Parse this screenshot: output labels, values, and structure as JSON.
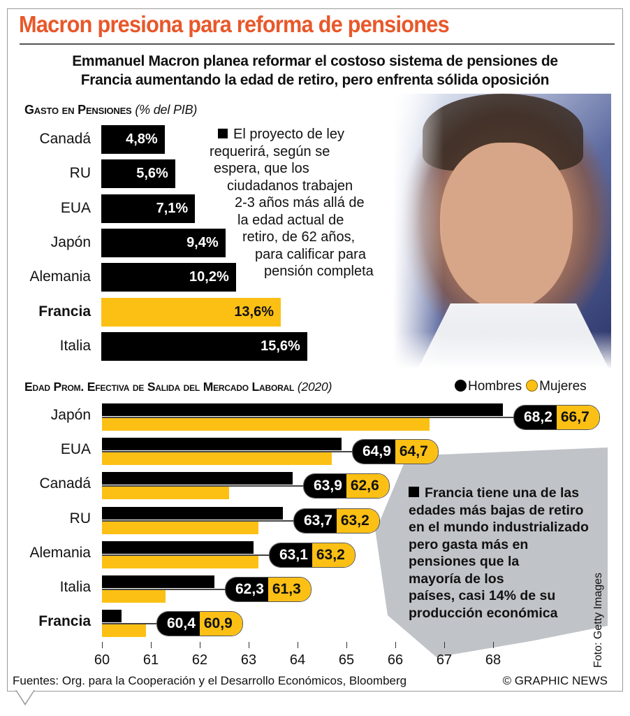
{
  "title": "Macron presiona para reforma de pensiones",
  "subtitle_lines": [
    "Emmanuel Macron planea reformar el costoso sistema de pensiones de",
    "Francia aumentando la edad de retiro, pero enfrenta sólida oposición"
  ],
  "photo": {
    "description": "Retrato de Emmanuel Macron",
    "credit": "Foto: Getty Images"
  },
  "note1_lines": [
    "El proyecto de ley",
    "requerirá, según se",
    "espera, que los",
    "ciudadanos trabajen",
    "2-3 años más allá de",
    "la edad actual de",
    "retiro, de 62 años,",
    "para calificar para",
    "pensión completa"
  ],
  "note2_lines": [
    "Francia tiene una de las",
    "edades más bajas de retiro",
    "en el mundo industrializado",
    "pero gasta más en",
    "pensiones que la",
    "mayoría de los",
    "países, casi 14% de su",
    "producción  económica"
  ],
  "colors": {
    "title": "#e8582a",
    "highlight": "#fcc015",
    "bar": "#000000"
  },
  "chart_data": [
    {
      "type": "bar",
      "orientation": "horizontal",
      "title": "Gasto en Pensiones",
      "title_note": "(% del PIB)",
      "categories": [
        "Canadá",
        "RU",
        "EUA",
        "Japón",
        "Alemania",
        "Francia",
        "Italia"
      ],
      "values": [
        4.8,
        5.6,
        7.1,
        9.4,
        10.2,
        13.6,
        15.6
      ],
      "labels": [
        "4,8%",
        "5,6%",
        "7,1%",
        "9,4%",
        "10,2%",
        "13,6%",
        "15,6%"
      ],
      "highlight": "Francia",
      "xlim": [
        0,
        15.6
      ],
      "grid": false
    },
    {
      "type": "bar",
      "orientation": "horizontal",
      "title": "Edad Prom. Efectiva de Salida del Mercado Laboral",
      "title_note": "(2020)",
      "legend": [
        "Hombres",
        "Mujeres"
      ],
      "legend_placement": "top-right",
      "categories": [
        "Japón",
        "EUA",
        "Canadá",
        "RU",
        "Alemania",
        "Italia",
        "Francia"
      ],
      "series": [
        {
          "name": "Hombres",
          "values": [
            68.2,
            64.9,
            63.9,
            63.7,
            63.1,
            62.3,
            60.4
          ],
          "labels": [
            "68,2",
            "64,9",
            "63,9",
            "63,7",
            "63,1",
            "62,3",
            "60,4"
          ]
        },
        {
          "name": "Mujeres",
          "values": [
            66.7,
            64.7,
            62.6,
            63.2,
            63.2,
            61.3,
            60.9
          ],
          "labels": [
            "66,7",
            "64,7",
            "62,6",
            "63,2",
            "63,2",
            "61,3",
            "60,9"
          ]
        }
      ],
      "highlight": "Francia",
      "xlim": [
        60,
        68
      ],
      "xticks": [
        "60",
        "61",
        "62",
        "63",
        "64",
        "65",
        "66",
        "67",
        "68"
      ],
      "grid": false
    }
  ],
  "footer": {
    "sources": "Fuentes: Org. para la Cooperación y el Desarrollo Económicos, Bloomberg",
    "copyright": "© GRAPHIC NEWS"
  }
}
